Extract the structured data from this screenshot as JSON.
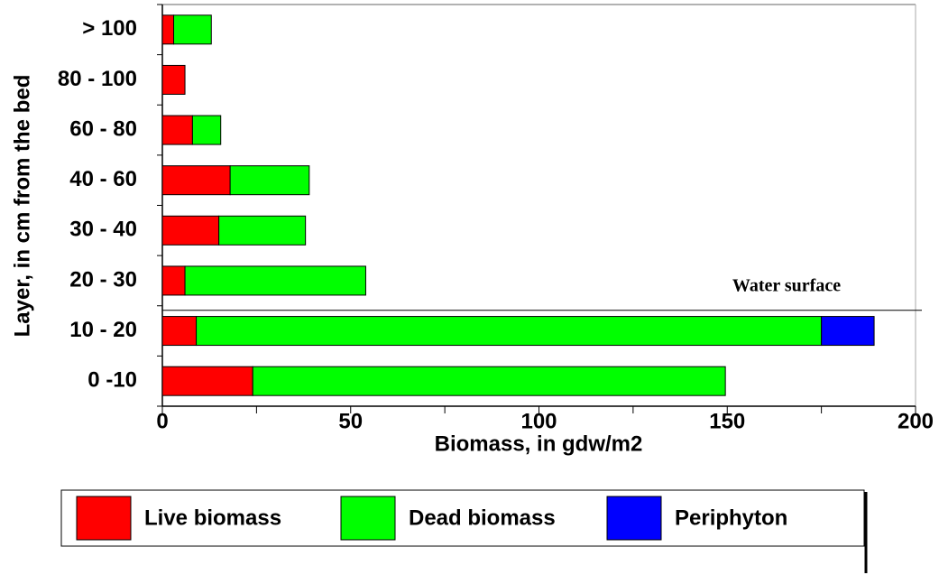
{
  "chart_data": {
    "type": "stacked_barh",
    "xlabel": "Biomass, in gdw/m2",
    "ylabel": "Layer, in cm from the bed",
    "categories": [
      "0 -10",
      "10 - 20",
      "20 - 30",
      "30 - 40",
      "40 - 60",
      "60 - 80",
      "80 - 100",
      "> 100"
    ],
    "series": [
      {
        "name": "Live biomass",
        "color": "#ff0000",
        "values": [
          24,
          9,
          6,
          15,
          18,
          8,
          6,
          3
        ]
      },
      {
        "name": "Dead biomass",
        "color": "#00ff00",
        "values": [
          125.5,
          166,
          48,
          23,
          21,
          7.5,
          0,
          10
        ]
      },
      {
        "name": "Periphyton",
        "color": "#0000ff",
        "values": [
          0,
          14,
          0,
          0,
          0,
          0,
          0,
          0
        ]
      }
    ],
    "xlim": [
      0,
      200
    ],
    "xticks": [
      0,
      50,
      100,
      150,
      200
    ],
    "xminorticks": [
      25,
      75,
      125,
      175
    ],
    "annotations": [
      {
        "text": "Water surface"
      }
    ],
    "legend": "bottom"
  }
}
